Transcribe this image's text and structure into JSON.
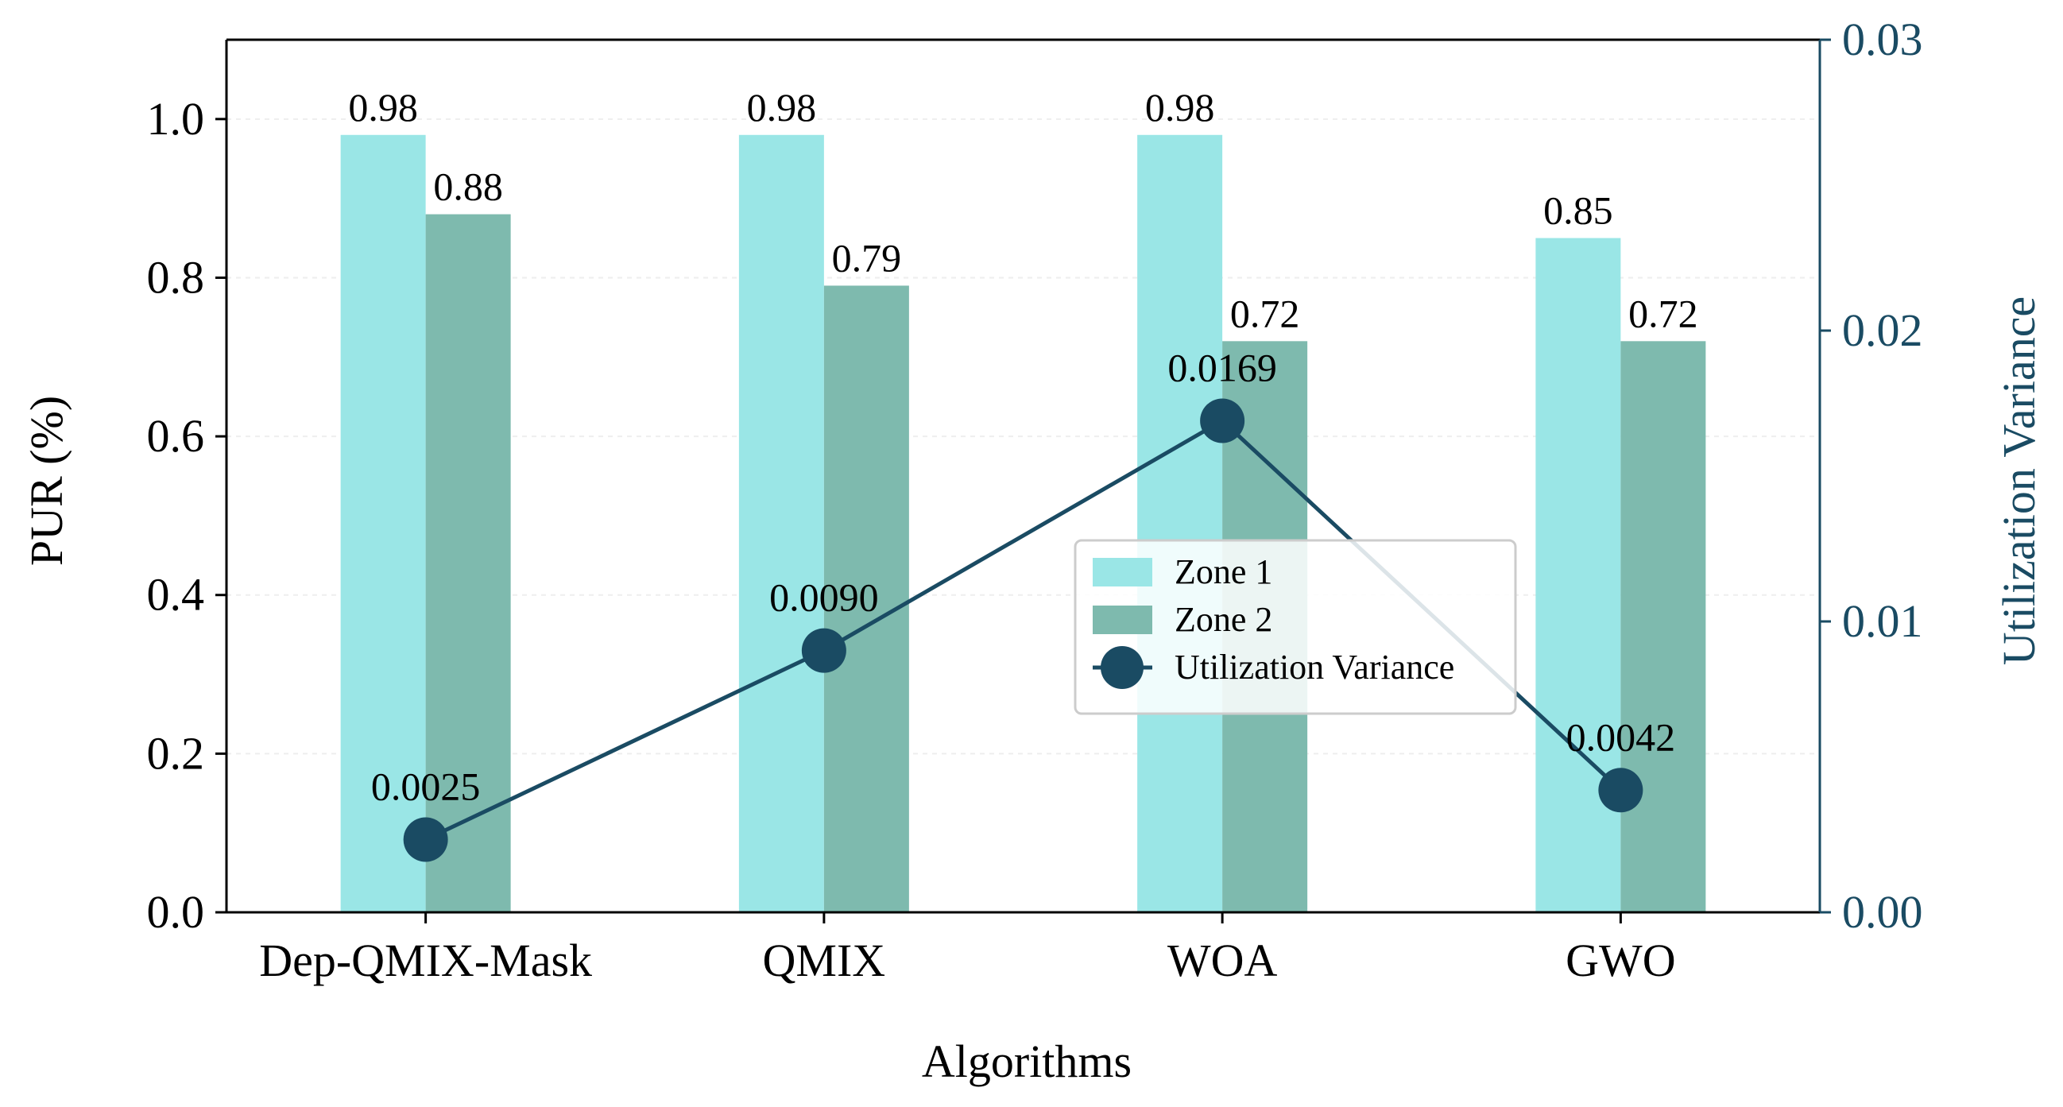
{
  "chart_data": {
    "type": "bar",
    "categories": [
      "Dep-QMIX-Mask",
      "QMIX",
      "WOA",
      "GWO"
    ],
    "xlabel": "Algorithms",
    "ylabel": "PUR (%)",
    "ylim": [
      0,
      1.1
    ],
    "yticks": [
      "0.0",
      "0.2",
      "0.4",
      "0.6",
      "0.8",
      "1.0"
    ],
    "series": [
      {
        "name": "Zone 1",
        "values": [
          0.98,
          0.98,
          0.98,
          0.85
        ],
        "labels": [
          "0.98",
          "0.98",
          "0.98",
          "0.85"
        ],
        "color": "#9ae6e6"
      },
      {
        "name": "Zone 2",
        "values": [
          0.88,
          0.79,
          0.72,
          0.72
        ],
        "labels": [
          "0.88",
          "0.79",
          "0.72",
          "0.72"
        ],
        "color": "#7ebaae"
      }
    ],
    "secondary": {
      "type": "line",
      "name": "Utilization Variance",
      "ylabel": "Utilization Variance",
      "values": [
        0.0025,
        0.009,
        0.0169,
        0.0042
      ],
      "labels": [
        "0.0025",
        "0.0090",
        "0.0169",
        "0.0042"
      ],
      "ylim": [
        0,
        0.03
      ],
      "yticks": [
        "0.00",
        "0.01",
        "0.02",
        "0.03"
      ],
      "color": "#1a4b63"
    },
    "grid": "horizontal",
    "legend_position": "center-right"
  }
}
